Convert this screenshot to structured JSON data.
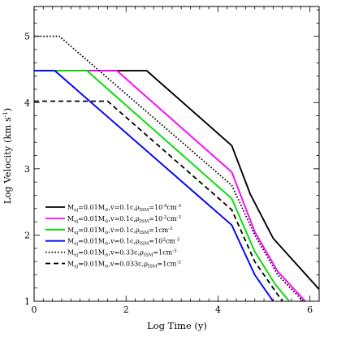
{
  "chart_data": {
    "type": "line",
    "xlabel": "Log Time (y)",
    "ylabel": "Log Velocity (km s⁻¹)",
    "xlim": [
      0,
      6.2
    ],
    "ylim": [
      1,
      5.45
    ],
    "x_ticks": [
      0,
      2,
      4,
      6
    ],
    "y_ticks": [
      1,
      2,
      3,
      4,
      5
    ],
    "grid": false,
    "legend_position": "bottom-left",
    "series": [
      {
        "name": "Mej=0.01M⊙,v=0.1c,ρISM=10⁻⁴cm⁻³",
        "color": "#000000",
        "dash": "solid",
        "legend": {
          "mass": "0.01",
          "v": "0.1c",
          "rho": "10",
          "rho_exp": "-4",
          "unit": "cm",
          "unit_exp": "-3"
        },
        "points": [
          [
            0,
            4.48
          ],
          [
            2.45,
            4.48
          ],
          [
            4.3,
            3.35
          ],
          [
            4.7,
            2.62
          ],
          [
            5.2,
            1.95
          ],
          [
            6.2,
            1.18
          ]
        ]
      },
      {
        "name": "Mej=0.01M⊙,v=0.1c,ρISM=10⁻²cm⁻³",
        "color": "#ff00ff",
        "dash": "solid",
        "legend": {
          "mass": "0.01",
          "v": "0.1c",
          "rho": "10",
          "rho_exp": "-2",
          "unit": "cm",
          "unit_exp": "-3"
        },
        "points": [
          [
            0,
            4.48
          ],
          [
            1.8,
            4.48
          ],
          [
            4.3,
            2.95
          ],
          [
            4.8,
            2.05
          ],
          [
            5.3,
            1.45
          ],
          [
            5.9,
            1.0
          ]
        ]
      },
      {
        "name": "Mej=0.01M⊙,v=0.1c,ρISM=1cm⁻³",
        "color": "#00dd00",
        "dash": "solid",
        "legend": {
          "mass": "0.01",
          "v": "0.1c",
          "rho": "1",
          "rho_exp": "",
          "unit": "cm",
          "unit_exp": "-3"
        },
        "points": [
          [
            0,
            4.48
          ],
          [
            1.15,
            4.48
          ],
          [
            4.3,
            2.55
          ],
          [
            4.8,
            1.75
          ],
          [
            5.25,
            1.25
          ],
          [
            5.55,
            1.0
          ]
        ]
      },
      {
        "name": "Mej=0.01M⊙,v=0.1c,ρISM=10²cm⁻³",
        "color": "#0000ff",
        "dash": "solid",
        "legend": {
          "mass": "0.01",
          "v": "0.1c",
          "rho": "10",
          "rho_exp": "2",
          "unit": "cm",
          "unit_exp": "-3"
        },
        "points": [
          [
            0,
            4.48
          ],
          [
            0.45,
            4.48
          ],
          [
            4.3,
            2.15
          ],
          [
            4.8,
            1.4
          ],
          [
            5.2,
            1.0
          ]
        ]
      },
      {
        "name": "Mej=0.01M⊙,v=0.33c,ρISM=1cm⁻³",
        "color": "#000000",
        "dash": "dotted",
        "legend": {
          "mass": "0.01",
          "v": "0.33c",
          "rho": "1",
          "rho_exp": "",
          "unit": "cm",
          "unit_exp": "-3"
        },
        "points": [
          [
            0,
            5.0
          ],
          [
            0.55,
            5.0
          ],
          [
            4.3,
            2.75
          ],
          [
            4.8,
            2.0
          ],
          [
            5.3,
            1.4
          ],
          [
            5.85,
            1.0
          ]
        ]
      },
      {
        "name": "Mej=0.01M⊙,v=0.033c,ρISM=1cm⁻³",
        "color": "#000000",
        "dash": "dashed",
        "legend": {
          "mass": "0.01",
          "v": "0.033c",
          "rho": "1",
          "rho_exp": "",
          "unit": "cm",
          "unit_exp": "-3"
        },
        "points": [
          [
            0,
            4.02
          ],
          [
            1.6,
            4.02
          ],
          [
            4.3,
            2.38
          ],
          [
            4.8,
            1.6
          ],
          [
            5.25,
            1.15
          ],
          [
            5.4,
            1.0
          ]
        ]
      }
    ]
  },
  "labels": {
    "x_axis": "Log Time (y)",
    "y_axis_main": "Log Velocity (km s",
    "y_axis_sup": "-1",
    "y_axis_end": ")",
    "legend_M": "M",
    "legend_ej": "ej",
    "legend_eq": "=",
    "legend_Msun": "M",
    "legend_sun": "⊙",
    "legend_v": ",v=",
    "legend_rho": ",ρ",
    "legend_ism": "ISM",
    "legend_eq2": "="
  }
}
